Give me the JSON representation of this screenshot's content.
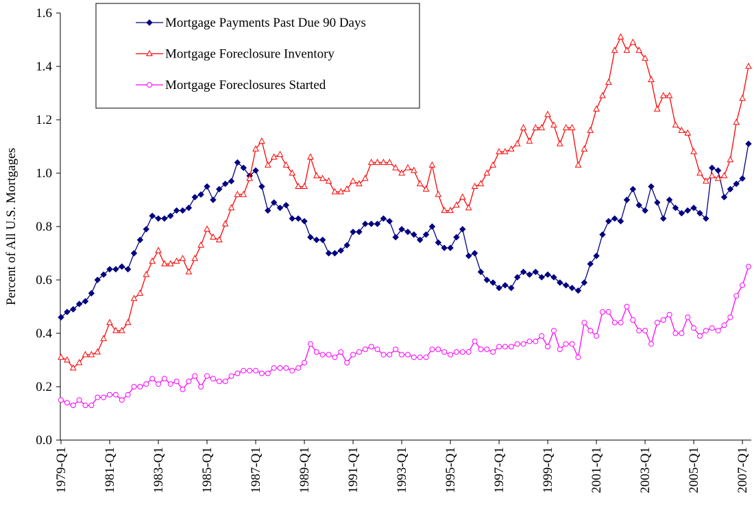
{
  "chart_data": {
    "type": "line",
    "y_label": "Percent of All U.S. Mortgages",
    "categories": [
      "1979-Q1",
      null,
      null,
      null,
      null,
      null,
      null,
      null,
      "1981-Q1",
      null,
      null,
      null,
      null,
      null,
      null,
      null,
      "1983-Q1",
      null,
      null,
      null,
      null,
      null,
      null,
      null,
      "1985-Q1",
      null,
      null,
      null,
      null,
      null,
      null,
      null,
      "1987-Q1",
      null,
      null,
      null,
      null,
      null,
      null,
      null,
      "1989-Q1",
      null,
      null,
      null,
      null,
      null,
      null,
      null,
      "1991-Q1",
      null,
      null,
      null,
      null,
      null,
      null,
      null,
      "1993-Q1",
      null,
      null,
      null,
      null,
      null,
      null,
      null,
      "1995-Q1",
      null,
      null,
      null,
      null,
      null,
      null,
      null,
      "1997-Q1",
      null,
      null,
      null,
      null,
      null,
      null,
      null,
      "1999-Q1",
      null,
      null,
      null,
      null,
      null,
      null,
      null,
      "2001-Q1",
      null,
      null,
      null,
      null,
      null,
      null,
      null,
      "2003-Q1",
      null,
      null,
      null,
      null,
      null,
      null,
      null,
      "2005-Q1",
      null,
      null,
      null,
      null,
      null,
      null,
      null,
      "2007-Q1",
      null
    ],
    "series": [
      {
        "name": "Mortgage Payments Past Due 90 Days",
        "color": "#000080",
        "marker": "diamond",
        "values": [
          0.46,
          0.48,
          0.49,
          0.51,
          0.52,
          0.55,
          0.6,
          0.62,
          0.64,
          0.64,
          0.65,
          0.64,
          0.7,
          0.75,
          0.79,
          0.84,
          0.83,
          0.83,
          0.84,
          0.86,
          0.86,
          0.87,
          0.91,
          0.92,
          0.95,
          0.9,
          0.94,
          0.96,
          0.97,
          1.04,
          1.02,
          0.99,
          1.01,
          0.95,
          0.86,
          0.89,
          0.87,
          0.88,
          0.83,
          0.83,
          0.82,
          0.76,
          0.75,
          0.75,
          0.7,
          0.7,
          0.71,
          0.73,
          0.78,
          0.78,
          0.81,
          0.81,
          0.81,
          0.83,
          0.82,
          0.76,
          0.79,
          0.78,
          0.77,
          0.75,
          0.77,
          0.8,
          0.74,
          0.72,
          0.72,
          0.76,
          0.79,
          0.69,
          0.7,
          0.63,
          0.6,
          0.59,
          0.57,
          0.58,
          0.57,
          0.61,
          0.63,
          0.62,
          0.63,
          0.61,
          0.62,
          0.61,
          0.59,
          0.58,
          0.57,
          0.56,
          0.59,
          0.66,
          0.69,
          0.77,
          0.82,
          0.83,
          0.82,
          0.9,
          0.94,
          0.88,
          0.86,
          0.95,
          0.89,
          0.83,
          0.9,
          0.87,
          0.85,
          0.86,
          0.87,
          0.85,
          0.83,
          1.02,
          1.01,
          0.91,
          0.94,
          0.96,
          0.98,
          1.11
        ]
      },
      {
        "name": "Mortgage Foreclosure Inventory",
        "color": "#ff0000",
        "marker": "triangle",
        "values": [
          0.31,
          0.3,
          0.27,
          0.29,
          0.32,
          0.32,
          0.33,
          0.38,
          0.44,
          0.41,
          0.41,
          0.44,
          0.53,
          0.55,
          0.62,
          0.67,
          0.71,
          0.66,
          0.66,
          0.67,
          0.68,
          0.63,
          0.68,
          0.73,
          0.79,
          0.76,
          0.75,
          0.81,
          0.87,
          0.92,
          0.92,
          0.98,
          1.09,
          1.12,
          1.03,
          1.06,
          1.07,
          1.03,
          1.0,
          0.95,
          0.95,
          1.06,
          0.99,
          0.98,
          0.97,
          0.93,
          0.93,
          0.94,
          0.97,
          0.96,
          0.98,
          1.04,
          1.04,
          1.04,
          1.04,
          1.02,
          1.0,
          1.02,
          1.01,
          0.96,
          0.94,
          1.03,
          0.92,
          0.86,
          0.86,
          0.88,
          0.91,
          0.87,
          0.95,
          0.96,
          1.0,
          1.03,
          1.08,
          1.08,
          1.09,
          1.11,
          1.17,
          1.12,
          1.17,
          1.17,
          1.22,
          1.18,
          1.11,
          1.17,
          1.17,
          1.03,
          1.09,
          1.16,
          1.24,
          1.29,
          1.34,
          1.46,
          1.51,
          1.46,
          1.49,
          1.46,
          1.43,
          1.35,
          1.24,
          1.29,
          1.29,
          1.18,
          1.16,
          1.15,
          1.08,
          1.0,
          0.97,
          0.99,
          0.98,
          0.99,
          1.05,
          1.19,
          1.28,
          1.4
        ]
      },
      {
        "name": "Mortgage Foreclosures Started",
        "color": "#ff00ff",
        "marker": "circle",
        "values": [
          0.15,
          0.14,
          0.13,
          0.15,
          0.13,
          0.13,
          0.16,
          0.16,
          0.17,
          0.17,
          0.15,
          0.17,
          0.2,
          0.2,
          0.21,
          0.23,
          0.21,
          0.23,
          0.21,
          0.22,
          0.19,
          0.22,
          0.24,
          0.2,
          0.24,
          0.23,
          0.22,
          0.22,
          0.24,
          0.25,
          0.26,
          0.26,
          0.26,
          0.25,
          0.25,
          0.27,
          0.27,
          0.27,
          0.26,
          0.27,
          0.29,
          0.36,
          0.33,
          0.32,
          0.32,
          0.31,
          0.33,
          0.29,
          0.32,
          0.33,
          0.34,
          0.35,
          0.34,
          0.32,
          0.32,
          0.34,
          0.32,
          0.32,
          0.31,
          0.31,
          0.31,
          0.34,
          0.34,
          0.33,
          0.32,
          0.33,
          0.33,
          0.33,
          0.37,
          0.34,
          0.34,
          0.33,
          0.35,
          0.35,
          0.35,
          0.36,
          0.36,
          0.37,
          0.37,
          0.39,
          0.35,
          0.41,
          0.34,
          0.36,
          0.36,
          0.31,
          0.44,
          0.41,
          0.39,
          0.48,
          0.48,
          0.44,
          0.44,
          0.5,
          0.45,
          0.41,
          0.41,
          0.36,
          0.44,
          0.45,
          0.47,
          0.4,
          0.4,
          0.46,
          0.42,
          0.39,
          0.41,
          0.42,
          0.41,
          0.43,
          0.46,
          0.54,
          0.58,
          0.65
        ]
      }
    ],
    "ylim": [
      0,
      1.6
    ],
    "yticks": [
      {
        "value": 0,
        "label": "0.0"
      },
      0.2,
      0.4,
      0.6,
      0.8,
      {
        "value": 1,
        "label": "1.0"
      },
      1.2,
      1.4,
      1.6
    ],
    "legend": "top-left"
  }
}
